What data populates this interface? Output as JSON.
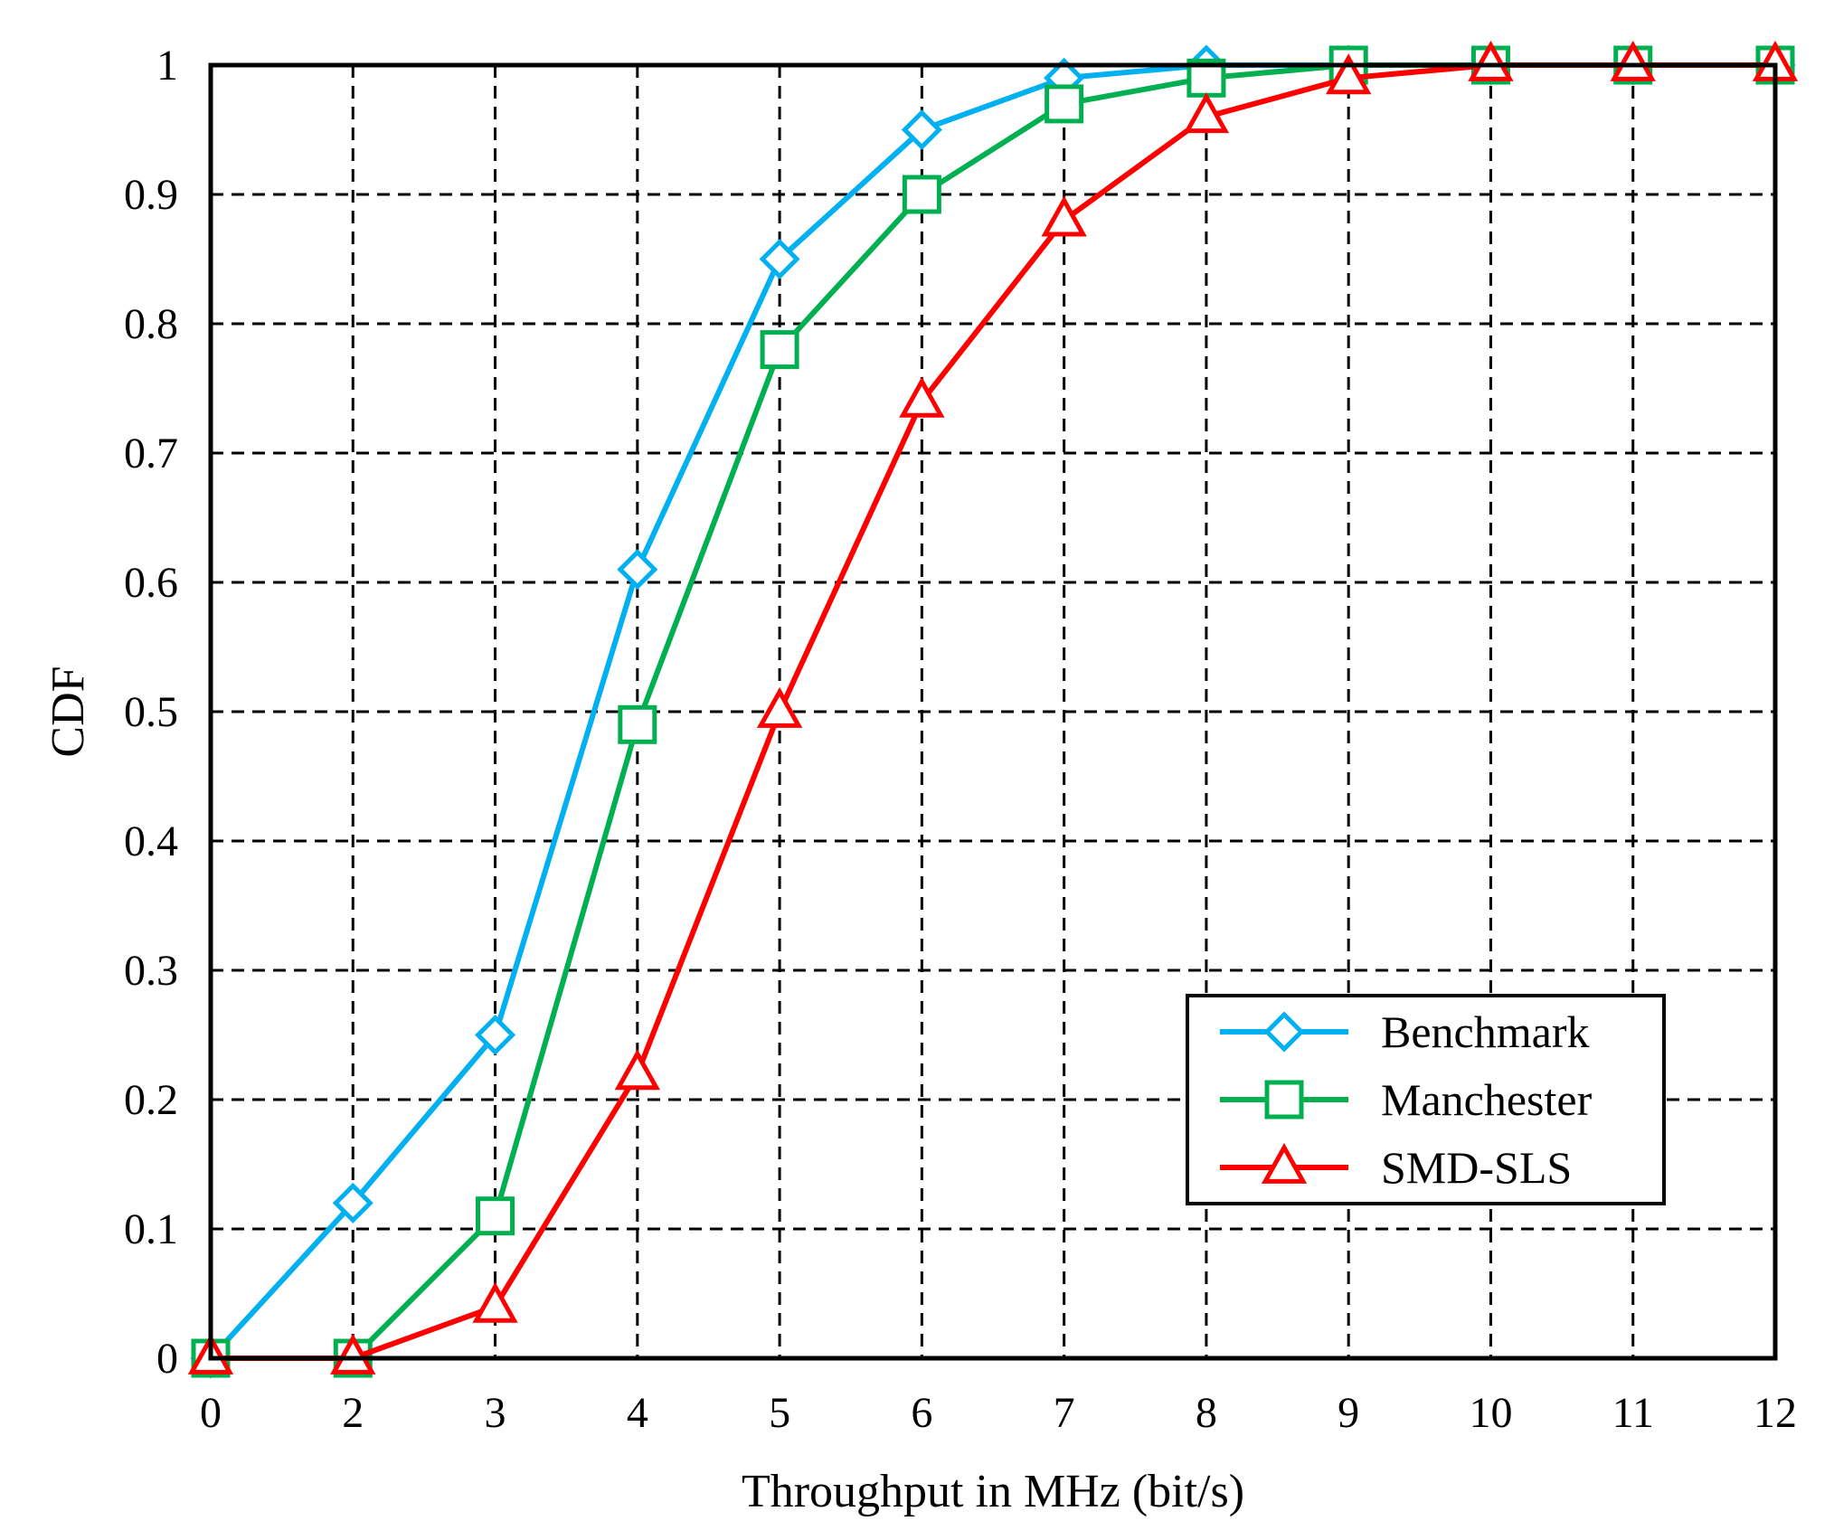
{
  "chart_data": {
    "type": "line",
    "title": "",
    "xlabel": "Throughput in MHz (bit/s)",
    "ylabel": "CDF",
    "categories": [
      "0",
      "2",
      "3",
      "4",
      "5",
      "6",
      "7",
      "8",
      "9",
      "10",
      "11",
      "12"
    ],
    "yticks": [
      "0",
      "0.1",
      "0.2",
      "0.3",
      "0.4",
      "0.5",
      "0.6",
      "0.7",
      "0.8",
      "0.9",
      "1"
    ],
    "ylim": [
      0,
      1
    ],
    "grid": true,
    "legend_position": "lower-right",
    "series": [
      {
        "name": "Benchmark",
        "color": "#00B0F0",
        "marker": "diamond",
        "values": [
          0,
          0.12,
          0.25,
          0.61,
          0.85,
          0.95,
          0.99,
          1.0,
          1.0,
          1.0,
          1.0,
          1.0
        ]
      },
      {
        "name": "Manchester",
        "color": "#00B050",
        "marker": "square",
        "values": [
          0,
          0,
          0.11,
          0.49,
          0.78,
          0.9,
          0.97,
          0.99,
          1.0,
          1.0,
          1.0,
          1.0
        ]
      },
      {
        "name": "SMD-SLS",
        "color": "#FF0000",
        "marker": "triangle",
        "values": [
          0,
          0,
          0.04,
          0.22,
          0.5,
          0.74,
          0.88,
          0.96,
          0.99,
          1.0,
          1.0,
          1.0
        ]
      }
    ]
  }
}
